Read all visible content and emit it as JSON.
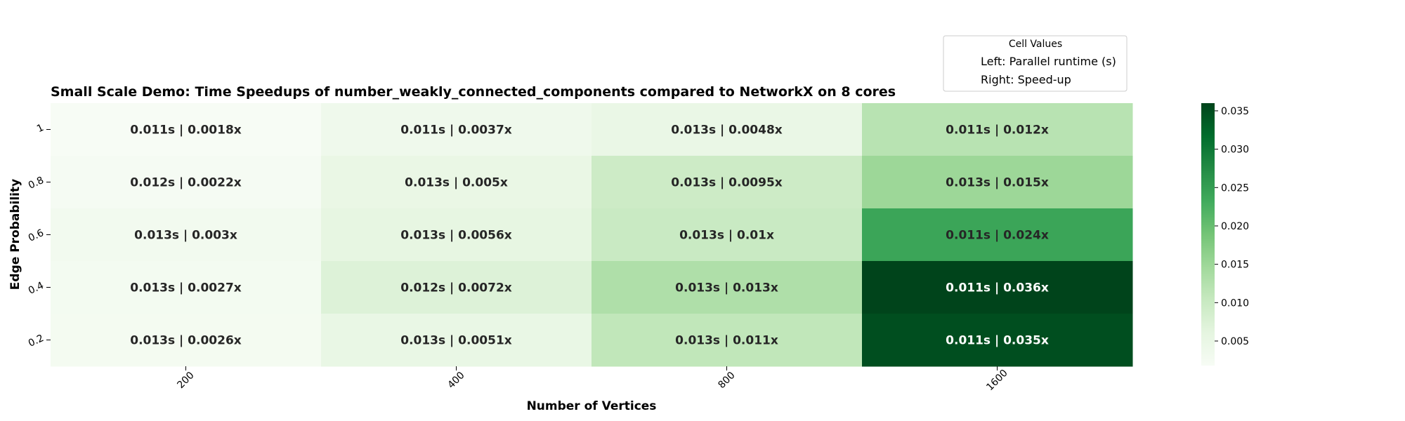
{
  "chart_data": {
    "type": "heatmap",
    "title": "Small Scale Demo: Time Speedups of number_weakly_connected_components compared to NetworkX on 8 cores",
    "xlabel": "Number of Vertices",
    "ylabel": "Edge Probability",
    "x_categories": [
      "200",
      "400",
      "800",
      "1600"
    ],
    "y_categories": [
      "1",
      "0.8",
      "0.6",
      "0.4",
      "0.2"
    ],
    "cells": [
      [
        {
          "runtime": 0.011,
          "speedup": 0.0018,
          "label": "0.011s | 0.0018x"
        },
        {
          "runtime": 0.011,
          "speedup": 0.0037,
          "label": "0.011s | 0.0037x"
        },
        {
          "runtime": 0.013,
          "speedup": 0.0048,
          "label": "0.013s | 0.0048x"
        },
        {
          "runtime": 0.011,
          "speedup": 0.012,
          "label": "0.011s | 0.012x"
        }
      ],
      [
        {
          "runtime": 0.012,
          "speedup": 0.0022,
          "label": "0.012s | 0.0022x"
        },
        {
          "runtime": 0.013,
          "speedup": 0.005,
          "label": "0.013s | 0.005x"
        },
        {
          "runtime": 0.013,
          "speedup": 0.0095,
          "label": "0.013s | 0.0095x"
        },
        {
          "runtime": 0.013,
          "speedup": 0.015,
          "label": "0.013s | 0.015x"
        }
      ],
      [
        {
          "runtime": 0.013,
          "speedup": 0.003,
          "label": "0.013s | 0.003x"
        },
        {
          "runtime": 0.013,
          "speedup": 0.0056,
          "label": "0.013s | 0.0056x"
        },
        {
          "runtime": 0.013,
          "speedup": 0.01,
          "label": "0.013s | 0.01x"
        },
        {
          "runtime": 0.011,
          "speedup": 0.024,
          "label": "0.011s | 0.024x"
        }
      ],
      [
        {
          "runtime": 0.013,
          "speedup": 0.0027,
          "label": "0.013s | 0.0027x"
        },
        {
          "runtime": 0.012,
          "speedup": 0.0072,
          "label": "0.012s | 0.0072x"
        },
        {
          "runtime": 0.013,
          "speedup": 0.013,
          "label": "0.013s | 0.013x"
        },
        {
          "runtime": 0.011,
          "speedup": 0.036,
          "label": "0.011s | 0.036x"
        }
      ],
      [
        {
          "runtime": 0.013,
          "speedup": 0.0026,
          "label": "0.013s | 0.0026x"
        },
        {
          "runtime": 0.013,
          "speedup": 0.0051,
          "label": "0.013s | 0.0051x"
        },
        {
          "runtime": 0.013,
          "speedup": 0.011,
          "label": "0.013s | 0.011x"
        },
        {
          "runtime": 0.011,
          "speedup": 0.035,
          "label": "0.011s | 0.035x"
        }
      ]
    ],
    "colorbar": {
      "min": 0.0018,
      "max": 0.036,
      "ticks": [
        0.005,
        0.01,
        0.015,
        0.02,
        0.025,
        0.03,
        0.035
      ],
      "tick_labels": [
        "0.005",
        "0.010",
        "0.015",
        "0.020",
        "0.025",
        "0.030",
        "0.035"
      ],
      "colormap": [
        "#f7fcf5",
        "#e5f5e0",
        "#c7e9c0",
        "#a1d99b",
        "#74c476",
        "#41ab5d",
        "#238b45",
        "#006d2c",
        "#00441b"
      ]
    },
    "legend": {
      "title": "Cell Values",
      "entries": [
        "Left: Parallel runtime (s)",
        "Right: Speed-up"
      ],
      "placement": "top-right"
    },
    "text_colors": {
      "dark": "#262626",
      "light": "#ffffff"
    }
  }
}
